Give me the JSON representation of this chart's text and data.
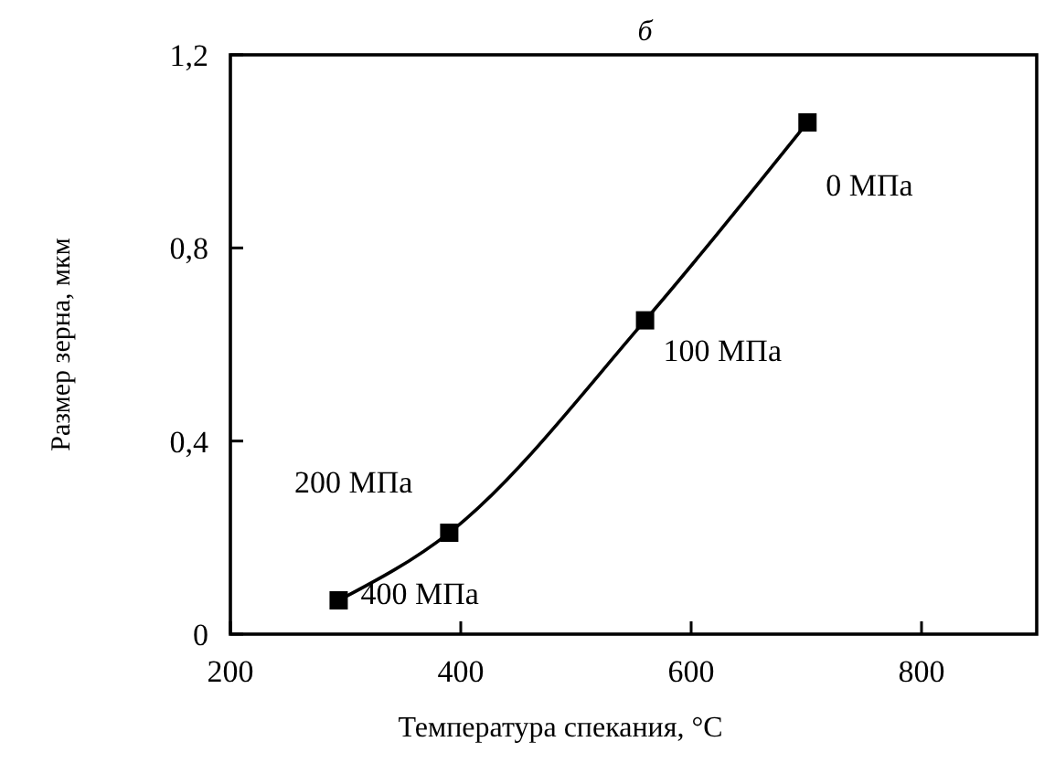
{
  "chart_data": {
    "type": "line",
    "title": "б",
    "xlabel": "Температура спекания, °C",
    "ylabel": "Размер зерна, мкм",
    "x": [
      294,
      390,
      560,
      701
    ],
    "series": [
      {
        "color": "#000000",
        "values": [
          0.07,
          0.21,
          0.65,
          1.06
        ]
      }
    ],
    "xlim": [
      200,
      900
    ],
    "xticks": [
      200,
      400,
      600,
      800
    ],
    "ylim": [
      0,
      1.2
    ],
    "yticks": [
      {
        "value": 0,
        "label": "0"
      },
      {
        "value": 0.4,
        "label": "0,4"
      },
      {
        "value": 0.8,
        "label": "0,8"
      },
      {
        "value": 1.2,
        "label": "1,2"
      }
    ],
    "marker": "square",
    "line_style": "solid",
    "annotations": [
      {
        "text": "400 МПа",
        "x": 294,
        "y": 0.07
      },
      {
        "text": "200 МПа",
        "x": 390,
        "y": 0.21
      },
      {
        "text": "100 МПа",
        "x": 560,
        "y": 0.65
      },
      {
        "text": "0 МПа",
        "x": 701,
        "y": 1.06
      }
    ]
  }
}
